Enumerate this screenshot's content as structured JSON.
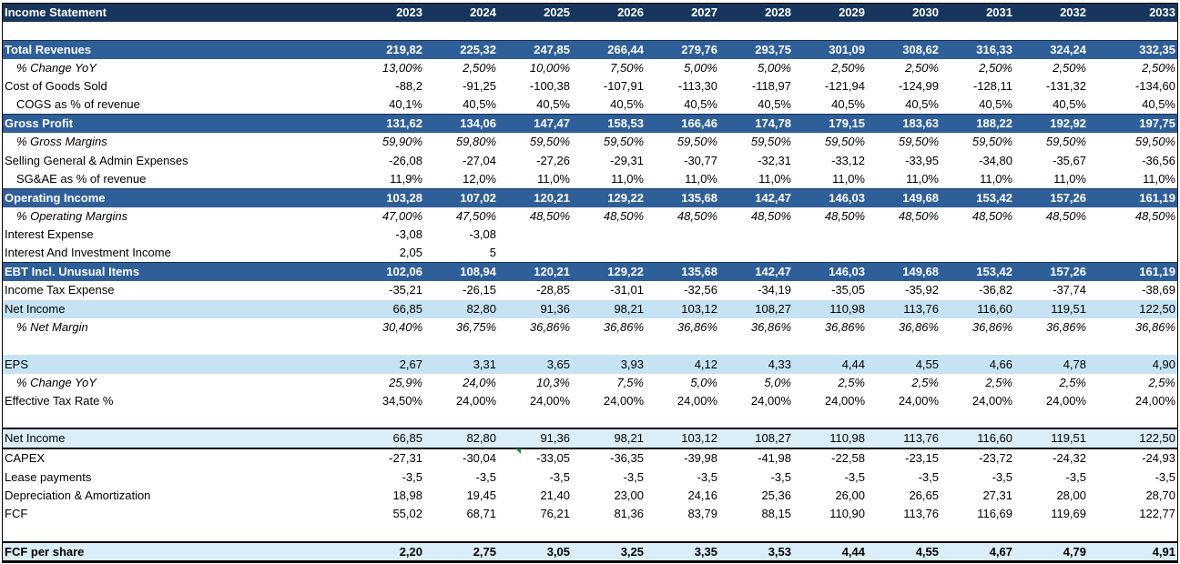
{
  "header": {
    "title": "Income Statement",
    "years": [
      "2023",
      "2024",
      "2025",
      "2026",
      "2027",
      "2028",
      "2029",
      "2030",
      "2031",
      "2032",
      "2033"
    ]
  },
  "rows": [
    {
      "id": "blank1",
      "type": "blank",
      "label": "",
      "values": []
    },
    {
      "id": "total-revenues",
      "type": "sec",
      "label": "Total Revenues",
      "values": [
        "219,82",
        "225,32",
        "247,85",
        "266,44",
        "279,76",
        "293,75",
        "301,09",
        "308,62",
        "316,33",
        "324,24",
        "332,35"
      ]
    },
    {
      "id": "revenue-change-yoy",
      "type": "pct",
      "label": "% Change YoY",
      "values": [
        "13,00%",
        "2,50%",
        "10,00%",
        "7,50%",
        "5,00%",
        "5,00%",
        "2,50%",
        "2,50%",
        "2,50%",
        "2,50%",
        "2,50%"
      ]
    },
    {
      "id": "cost-of-goods-sold",
      "type": "plain",
      "label": "Cost of Goods Sold",
      "values": [
        "-88,2",
        "-91,25",
        "-100,38",
        "-107,91",
        "-113,30",
        "-118,97",
        "-121,94",
        "-124,99",
        "-128,11",
        "-131,32",
        "-134,60"
      ]
    },
    {
      "id": "cogs-pct-revenue",
      "type": "sub",
      "label": "COGS as % of revenue",
      "values": [
        "40,1%",
        "40,5%",
        "40,5%",
        "40,5%",
        "40,5%",
        "40,5%",
        "40,5%",
        "40,5%",
        "40,5%",
        "40,5%",
        "40,5%"
      ]
    },
    {
      "id": "gross-profit",
      "type": "sec",
      "label": "Gross Profit",
      "values": [
        "131,62",
        "134,06",
        "147,47",
        "158,53",
        "166,46",
        "174,78",
        "179,15",
        "183,63",
        "188,22",
        "192,92",
        "197,75"
      ]
    },
    {
      "id": "gross-margins",
      "type": "pct",
      "label": "% Gross Margins",
      "values": [
        "59,90%",
        "59,80%",
        "59,50%",
        "59,50%",
        "59,50%",
        "59,50%",
        "59,50%",
        "59,50%",
        "59,50%",
        "59,50%",
        "59,50%"
      ]
    },
    {
      "id": "sga-expenses",
      "type": "plain",
      "label": "Selling General & Admin Expenses",
      "values": [
        "-26,08",
        "-27,04",
        "-27,26",
        "-29,31",
        "-30,77",
        "-32,31",
        "-33,12",
        "-33,95",
        "-34,80",
        "-35,67",
        "-36,56"
      ]
    },
    {
      "id": "sga-pct-revenue",
      "type": "sub",
      "label": "SG&AE as % of revenue",
      "values": [
        "11,9%",
        "12,0%",
        "11,0%",
        "11,0%",
        "11,0%",
        "11,0%",
        "11,0%",
        "11,0%",
        "11,0%",
        "11,0%",
        "11,0%"
      ]
    },
    {
      "id": "operating-income",
      "type": "sec",
      "label": "Operating Income",
      "values": [
        "103,28",
        "107,02",
        "120,21",
        "129,22",
        "135,68",
        "142,47",
        "146,03",
        "149,68",
        "153,42",
        "157,26",
        "161,19"
      ]
    },
    {
      "id": "operating-margins",
      "type": "pct",
      "label": "% Operating Margins",
      "values": [
        "47,00%",
        "47,50%",
        "48,50%",
        "48,50%",
        "48,50%",
        "48,50%",
        "48,50%",
        "48,50%",
        "48,50%",
        "48,50%",
        "48,50%"
      ]
    },
    {
      "id": "interest-expense",
      "type": "plain",
      "label": "Interest Expense",
      "values": [
        "-3,08",
        "-3,08",
        "",
        "",
        "",
        "",
        "",
        "",
        "",
        "",
        ""
      ]
    },
    {
      "id": "interest-investment-income",
      "type": "plain",
      "label": "Interest And Investment Income",
      "values": [
        "2,05",
        "5",
        "",
        "",
        "",
        "",
        "",
        "",
        "",
        "",
        ""
      ]
    },
    {
      "id": "ebt",
      "type": "sec",
      "label": "EBT Incl. Unusual Items",
      "values": [
        "102,06",
        "108,94",
        "120,21",
        "129,22",
        "135,68",
        "142,47",
        "146,03",
        "149,68",
        "153,42",
        "157,26",
        "161,19"
      ]
    },
    {
      "id": "income-tax-expense",
      "type": "plain",
      "label": "Income Tax Expense",
      "values": [
        "-35,21",
        "-26,15",
        "-28,85",
        "-31,01",
        "-32,56",
        "-34,19",
        "-35,05",
        "-35,92",
        "-36,82",
        "-37,74",
        "-38,69"
      ]
    },
    {
      "id": "net-income",
      "type": "light",
      "label": "Net Income",
      "values": [
        "66,85",
        "82,80",
        "91,36",
        "98,21",
        "103,12",
        "108,27",
        "110,98",
        "113,76",
        "116,60",
        "119,51",
        "122,50"
      ]
    },
    {
      "id": "net-margin",
      "type": "pct",
      "label": "% Net Margin",
      "values": [
        "30,40%",
        "36,75%",
        "36,86%",
        "36,86%",
        "36,86%",
        "36,86%",
        "36,86%",
        "36,86%",
        "36,86%",
        "36,86%",
        "36,86%"
      ]
    },
    {
      "id": "blank2",
      "type": "blank",
      "label": "",
      "values": []
    },
    {
      "id": "eps",
      "type": "light",
      "label": "EPS",
      "values": [
        "2,67",
        "3,31",
        "3,65",
        "3,93",
        "4,12",
        "4,33",
        "4,44",
        "4,55",
        "4,66",
        "4,78",
        "4,90"
      ]
    },
    {
      "id": "eps-change-yoy",
      "type": "pct",
      "label": "% Change YoY",
      "values": [
        "25,9%",
        "24,0%",
        "10,3%",
        "7,5%",
        "5,0%",
        "5,0%",
        "2,5%",
        "2,5%",
        "2,5%",
        "2,5%",
        "2,5%"
      ]
    },
    {
      "id": "effective-tax-rate",
      "type": "plain",
      "label": "Effective Tax Rate %",
      "values": [
        "34,50%",
        "24,00%",
        "24,00%",
        "24,00%",
        "24,00%",
        "24,00%",
        "24,00%",
        "24,00%",
        "24,00%",
        "24,00%",
        "24,00%"
      ]
    },
    {
      "id": "blank3",
      "type": "blank-top",
      "label": "",
      "values": []
    },
    {
      "id": "net-income-cf",
      "type": "light2",
      "label": "Net Income",
      "values": [
        "66,85",
        "82,80",
        "91,36",
        "98,21",
        "103,12",
        "108,27",
        "110,98",
        "113,76",
        "116,60",
        "119,51",
        "122,50"
      ]
    },
    {
      "id": "capex",
      "type": "plain",
      "label": "CAPEX",
      "values": [
        "-27,31",
        "-30,04",
        "-33,05",
        "-36,35",
        "-39,98",
        "-41,98",
        "-22,58",
        "-23,15",
        "-23,72",
        "-24,32",
        "-24,93"
      ]
    },
    {
      "id": "lease-payments",
      "type": "plain",
      "label": "Lease payments",
      "values": [
        "-3,5",
        "-3,5",
        "-3,5",
        "-3,5",
        "-3,5",
        "-3,5",
        "-3,5",
        "-3,5",
        "-3,5",
        "-3,5",
        "-3,5"
      ]
    },
    {
      "id": "depreciation-amortization",
      "type": "plain",
      "label": "Depreciation & Amortization",
      "values": [
        "18,98",
        "19,45",
        "21,40",
        "23,00",
        "24,16",
        "25,36",
        "26,00",
        "26,65",
        "27,31",
        "28,00",
        "28,70"
      ]
    },
    {
      "id": "fcf",
      "type": "plain",
      "label": "FCF",
      "values": [
        "55,02",
        "68,71",
        "76,21",
        "81,36",
        "83,79",
        "88,15",
        "110,90",
        "113,76",
        "116,69",
        "119,69",
        "122,77"
      ]
    },
    {
      "id": "blank4",
      "type": "blank",
      "label": "",
      "values": []
    },
    {
      "id": "fcf-per-share",
      "type": "fcfps",
      "label": "FCF per share",
      "values": [
        "2,20",
        "2,75",
        "3,05",
        "3,25",
        "3,35",
        "3,53",
        "4,44",
        "4,55",
        "4,67",
        "4,79",
        "4,91"
      ]
    }
  ]
}
